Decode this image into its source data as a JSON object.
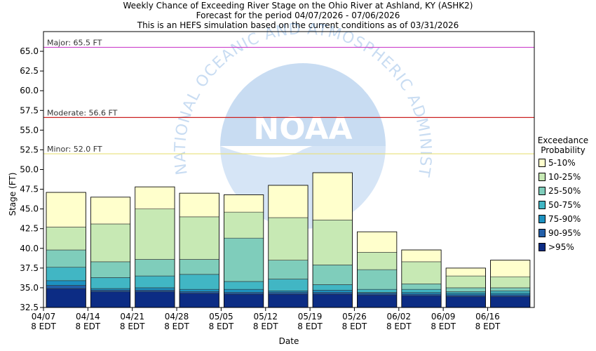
{
  "header": {
    "title": "Weekly Chance of Exceeding River Stage on the Ohio River at Ashland, KY (ASHK2)",
    "subtitle1": "Forecast for the period 04/07/2026 - 07/06/2026",
    "subtitle2": "This is an HEFS simulation based on the current conditions as of 03/31/2026"
  },
  "chart_data": {
    "type": "bar",
    "subtype": "stacked-range",
    "xlabel": "Date",
    "ylabel": "Stage (FT)",
    "ylim": [
      32.5,
      67.5
    ],
    "yticks": [
      "32.5",
      "35.0",
      "37.5",
      "40.0",
      "42.5",
      "45.0",
      "47.5",
      "50.0",
      "52.5",
      "55.0",
      "57.5",
      "60.0",
      "62.5",
      "65.0"
    ],
    "xticks": [
      {
        "date": "04/07",
        "tz": "8 EDT"
      },
      {
        "date": "04/14",
        "tz": "8 EDT"
      },
      {
        "date": "04/21",
        "tz": "8 EDT"
      },
      {
        "date": "04/28",
        "tz": "8 EDT"
      },
      {
        "date": "05/05",
        "tz": "8 EDT"
      },
      {
        "date": "05/12",
        "tz": "8 EDT"
      },
      {
        "date": "05/19",
        "tz": "8 EDT"
      },
      {
        "date": "05/26",
        "tz": "8 EDT"
      },
      {
        "date": "06/02",
        "tz": "8 EDT"
      },
      {
        "date": "06/09",
        "tz": "8 EDT"
      },
      {
        "date": "06/16",
        "tz": "8 EDT"
      }
    ],
    "flood_levels": [
      {
        "label": "Major: 65.5 FT",
        "value": 65.5,
        "color": "#cc44cc"
      },
      {
        "label": "Moderate: 56.6 FT",
        "value": 56.6,
        "color": "#cc2222"
      },
      {
        "label": "Minor: 52.0 FT",
        "value": 52.0,
        "color": "#e8e07a"
      }
    ],
    "legend_title": [
      "Exceedance",
      "Probability"
    ],
    "bands": [
      {
        "label": "5-10%",
        "color": "#ffffcc"
      },
      {
        "label": "10-25%",
        "color": "#c7e9b4"
      },
      {
        "label": "25-50%",
        "color": "#7fcdbb"
      },
      {
        "label": "50-75%",
        "color": "#41b6c4"
      },
      {
        "label": "75-90%",
        "color": "#1d91c0"
      },
      {
        "label": "90-95%",
        "color": "#225ea8"
      },
      {
        ">95%": "",
        "label": ">95%",
        "color": "#0c2c84"
      }
    ],
    "weeks": [
      {
        "start": "04/07",
        "bounds": [
          34.9,
          35.3,
          35.9,
          37.6,
          39.8,
          42.7,
          47.1
        ]
      },
      {
        "start": "04/14",
        "bounds": [
          34.5,
          34.7,
          34.9,
          36.3,
          38.3,
          43.1,
          46.5
        ]
      },
      {
        "start": "04/21",
        "bounds": [
          34.5,
          34.7,
          35.0,
          36.5,
          38.6,
          45.0,
          47.8
        ]
      },
      {
        "start": "04/28",
        "bounds": [
          34.3,
          34.5,
          34.8,
          36.7,
          38.6,
          44.0,
          47.0
        ]
      },
      {
        "start": "05/05",
        "bounds": [
          34.2,
          34.4,
          34.8,
          35.8,
          41.3,
          44.6,
          46.8
        ]
      },
      {
        "start": "05/12",
        "bounds": [
          34.2,
          34.4,
          34.6,
          36.1,
          38.5,
          43.9,
          48.0
        ]
      },
      {
        "start": "05/19",
        "bounds": [
          34.2,
          34.4,
          34.7,
          35.4,
          37.9,
          43.6,
          49.6
        ]
      },
      {
        "start": "05/26",
        "bounds": [
          34.1,
          34.3,
          34.4,
          34.8,
          37.3,
          39.5,
          42.1
        ]
      },
      {
        "start": "06/02",
        "bounds": [
          34.0,
          34.2,
          34.4,
          34.8,
          35.5,
          38.3,
          39.8
        ]
      },
      {
        "start": "06/09",
        "bounds": [
          33.9,
          34.1,
          34.3,
          34.5,
          35.0,
          36.5,
          37.5
        ]
      },
      {
        "start": "06/16",
        "bounds": [
          33.9,
          34.1,
          34.3,
          34.6,
          35.0,
          36.4,
          38.5
        ]
      }
    ],
    "watermark": {
      "logo_text": "NOAA",
      "ring_text": "NATIONAL OCEANIC AND ATMOSPHERIC ADMINISTRATION"
    }
  }
}
